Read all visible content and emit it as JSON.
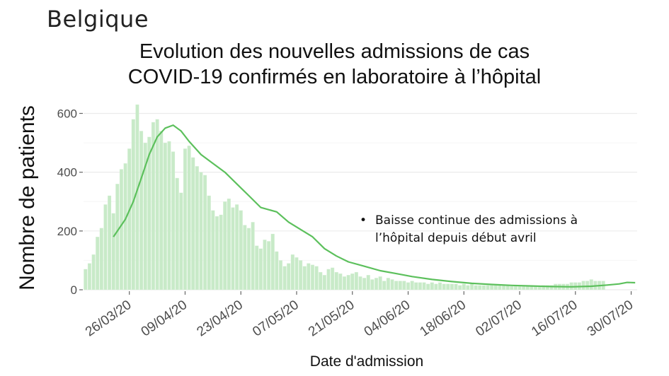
{
  "slide_label": "Belgique",
  "annotation": "Baisse continue des admissions à l’hôpital depuis début avril",
  "colors": {
    "bar": "#c8eac8",
    "line": "#5cc05c",
    "grid": "#ebebeb",
    "text": "#4d4d4d"
  },
  "chart_data": {
    "type": "bar",
    "title_line1": "Evolution des nouvelles admissions de cas",
    "title_line2": "COVID-19 confirmés en laboratoire à l’hôpital",
    "xlabel": "Date d'admission",
    "ylabel": "Nombre de patients",
    "ylim": [
      0,
      630
    ],
    "yticks": [
      0,
      200,
      400,
      600
    ],
    "grid": true,
    "x_start": "2020-03-15",
    "x_end": "2020-07-31",
    "xticks": [
      "26/03/20",
      "09/04/20",
      "23/04/20",
      "07/05/20",
      "21/05/20",
      "04/06/20",
      "18/06/20",
      "02/07/20",
      "16/07/20",
      "30/07/20"
    ],
    "series": [
      {
        "kind": "bar",
        "values": [
          70,
          90,
          120,
          180,
          210,
          290,
          320,
          260,
          360,
          410,
          430,
          480,
          580,
          630,
          540,
          500,
          520,
          570,
          580,
          540,
          500,
          505,
          470,
          380,
          330,
          480,
          490,
          450,
          420,
          400,
          390,
          320,
          270,
          250,
          255,
          300,
          310,
          280,
          290,
          270,
          220,
          210,
          230,
          150,
          140,
          170,
          165,
          190,
          130,
          100,
          80,
          90,
          120,
          110,
          100,
          80,
          90,
          85,
          80,
          60,
          50,
          70,
          75,
          60,
          55,
          45,
          50,
          55,
          60,
          45,
          40,
          50,
          35,
          40,
          45,
          30,
          40,
          35,
          30,
          30,
          30,
          25,
          30,
          25,
          25,
          25,
          20,
          25,
          20,
          25,
          20,
          20,
          20,
          20,
          15,
          20,
          15,
          20,
          15,
          15,
          15,
          15,
          15,
          15,
          15,
          15,
          15,
          12,
          12,
          12,
          12,
          12,
          12,
          12,
          12,
          15,
          15,
          15,
          20,
          20,
          20,
          20,
          25,
          25,
          25,
          30,
          30,
          35,
          30,
          30,
          30
        ]
      },
      {
        "kind": "line",
        "points": [
          {
            "x": "2020-03-22",
            "y": 180
          },
          {
            "x": "2020-03-25",
            "y": 240
          },
          {
            "x": "2020-03-27",
            "y": 300
          },
          {
            "x": "2020-03-29",
            "y": 380
          },
          {
            "x": "2020-03-31",
            "y": 460
          },
          {
            "x": "2020-04-02",
            "y": 520
          },
          {
            "x": "2020-04-04",
            "y": 550
          },
          {
            "x": "2020-04-06",
            "y": 560
          },
          {
            "x": "2020-04-08",
            "y": 540
          },
          {
            "x": "2020-04-10",
            "y": 505
          },
          {
            "x": "2020-04-13",
            "y": 460
          },
          {
            "x": "2020-04-16",
            "y": 430
          },
          {
            "x": "2020-04-19",
            "y": 400
          },
          {
            "x": "2020-04-22",
            "y": 360
          },
          {
            "x": "2020-04-25",
            "y": 320
          },
          {
            "x": "2020-04-28",
            "y": 280
          },
          {
            "x": "2020-05-02",
            "y": 265
          },
          {
            "x": "2020-05-05",
            "y": 230
          },
          {
            "x": "2020-05-08",
            "y": 205
          },
          {
            "x": "2020-05-11",
            "y": 180
          },
          {
            "x": "2020-05-14",
            "y": 140
          },
          {
            "x": "2020-05-17",
            "y": 115
          },
          {
            "x": "2020-05-20",
            "y": 95
          },
          {
            "x": "2020-05-24",
            "y": 80
          },
          {
            "x": "2020-05-28",
            "y": 65
          },
          {
            "x": "2020-06-01",
            "y": 55
          },
          {
            "x": "2020-06-05",
            "y": 45
          },
          {
            "x": "2020-06-10",
            "y": 35
          },
          {
            "x": "2020-06-15",
            "y": 28
          },
          {
            "x": "2020-06-20",
            "y": 22
          },
          {
            "x": "2020-06-25",
            "y": 18
          },
          {
            "x": "2020-06-30",
            "y": 15
          },
          {
            "x": "2020-07-05",
            "y": 13
          },
          {
            "x": "2020-07-10",
            "y": 11
          },
          {
            "x": "2020-07-15",
            "y": 10
          },
          {
            "x": "2020-07-20",
            "y": 12
          },
          {
            "x": "2020-07-24",
            "y": 16
          },
          {
            "x": "2020-07-27",
            "y": 20
          },
          {
            "x": "2020-07-29",
            "y": 25
          },
          {
            "x": "2020-07-31",
            "y": 24
          }
        ]
      }
    ]
  }
}
